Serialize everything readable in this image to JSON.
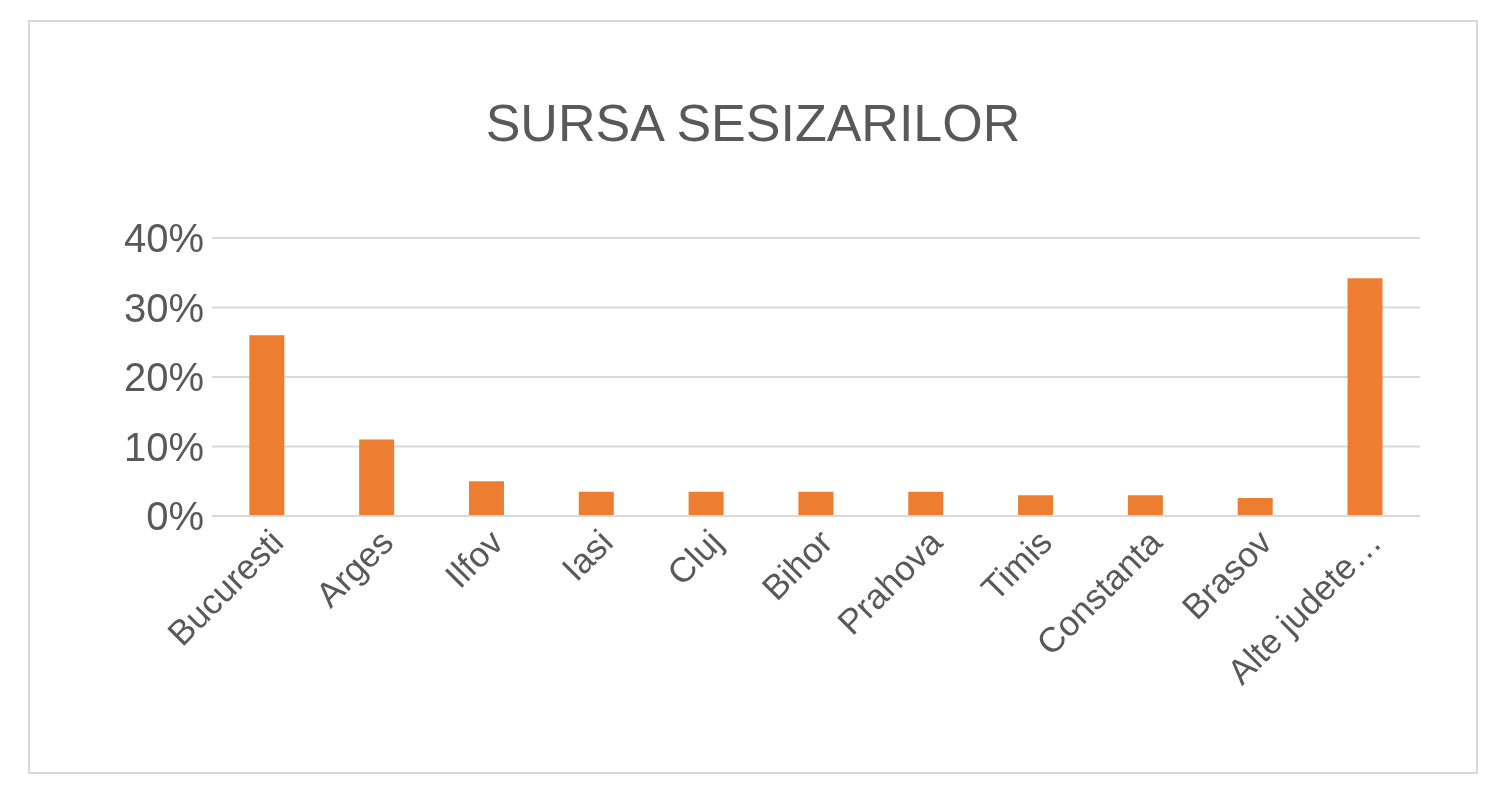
{
  "chart_data": {
    "type": "bar",
    "title": "SURSA SESIZARILOR",
    "categories": [
      "Bucuresti",
      "Arges",
      "Ilfov",
      "Iasi",
      "Cluj",
      "Bihor",
      "Prahova",
      "Timis",
      "Constanta",
      "Brasov",
      "Alte judete…"
    ],
    "values": [
      26,
      11,
      5,
      3.5,
      3.5,
      3.5,
      3.5,
      3,
      3,
      2.6,
      34.2
    ],
    "color": "#ed7d31",
    "ylim": [
      0,
      40
    ],
    "yticks": [
      {
        "value": 0,
        "label": "0%"
      },
      {
        "value": 10,
        "label": "10%"
      },
      {
        "value": 20,
        "label": "20%"
      },
      {
        "value": 30,
        "label": "30%"
      },
      {
        "value": 40,
        "label": "40%"
      }
    ],
    "grid": "y",
    "legend": false
  }
}
